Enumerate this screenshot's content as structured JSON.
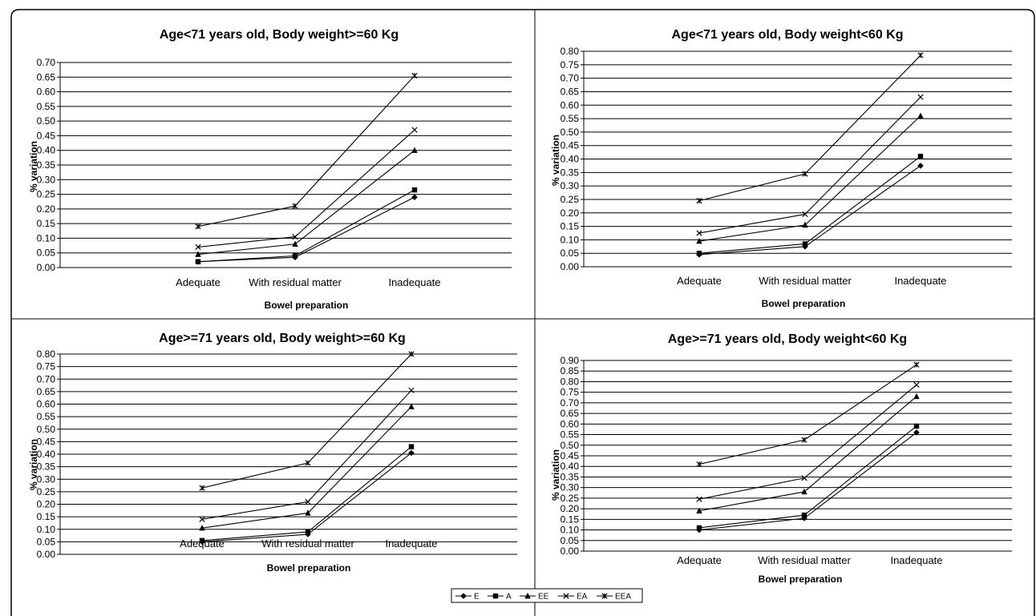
{
  "legend": {
    "items": [
      {
        "name": "E",
        "marker": "diamond"
      },
      {
        "name": "A",
        "marker": "square"
      },
      {
        "name": "EE",
        "marker": "triangle"
      },
      {
        "name": "EA",
        "marker": "x"
      },
      {
        "name": "EEA",
        "marker": "star"
      }
    ]
  },
  "chart_data": [
    {
      "type": "line",
      "title": "Age<71 years old, Body weight>=60 Kg",
      "xlabel": "Bowel preparation",
      "ylabel": "% variation",
      "categories": [
        "Adequate",
        "With residual matter",
        "Inadequate"
      ],
      "ylim": [
        0,
        0.7
      ],
      "ystep": 0.05,
      "grid": true,
      "series": [
        {
          "name": "E",
          "values": [
            0.02,
            0.035,
            0.24
          ]
        },
        {
          "name": "A",
          "values": [
            0.02,
            0.04,
            0.265
          ]
        },
        {
          "name": "EE",
          "values": [
            0.045,
            0.08,
            0.4
          ]
        },
        {
          "name": "EA",
          "values": [
            0.07,
            0.105,
            0.47
          ]
        },
        {
          "name": "EEA",
          "values": [
            0.14,
            0.21,
            0.655
          ]
        }
      ]
    },
    {
      "type": "line",
      "title": "Age<71 years old, Body weight<60 Kg",
      "xlabel": "Bowel preparation",
      "ylabel": "% variation",
      "categories": [
        "Adequate",
        "With residual matter",
        "Inadequate"
      ],
      "ylim": [
        0,
        0.8
      ],
      "ystep": 0.05,
      "grid": true,
      "series": [
        {
          "name": "E",
          "values": [
            0.045,
            0.075,
            0.375
          ]
        },
        {
          "name": "A",
          "values": [
            0.05,
            0.085,
            0.41
          ]
        },
        {
          "name": "EE",
          "values": [
            0.095,
            0.155,
            0.56
          ]
        },
        {
          "name": "EA",
          "values": [
            0.125,
            0.195,
            0.63
          ]
        },
        {
          "name": "EEA",
          "values": [
            0.245,
            0.345,
            0.785
          ]
        }
      ]
    },
    {
      "type": "line",
      "title": "Age>=71 years old, Body weight>=60 Kg",
      "xlabel": "Bowel preparation",
      "ylabel": "% variation",
      "categories": [
        "Adequate",
        "With residual matter",
        "Inadequate"
      ],
      "ylim": [
        0,
        0.8
      ],
      "ystep": 0.05,
      "grid": true,
      "series": [
        {
          "name": "E",
          "values": [
            0.05,
            0.08,
            0.405
          ]
        },
        {
          "name": "A",
          "values": [
            0.055,
            0.09,
            0.43
          ]
        },
        {
          "name": "EE",
          "values": [
            0.105,
            0.165,
            0.59
          ]
        },
        {
          "name": "EA",
          "values": [
            0.14,
            0.21,
            0.655
          ]
        },
        {
          "name": "EEA",
          "values": [
            0.265,
            0.365,
            0.8
          ]
        }
      ]
    },
    {
      "type": "line",
      "title": "Age>=71 years old, Body weight<60 Kg",
      "xlabel": "Bowel preparation",
      "ylabel": "% variation",
      "categories": [
        "Adequate",
        "With residual matter",
        "Inadequate"
      ],
      "ylim": [
        0,
        0.9
      ],
      "ystep": 0.05,
      "grid": true,
      "series": [
        {
          "name": "E",
          "values": [
            0.1,
            0.155,
            0.56
          ]
        },
        {
          "name": "A",
          "values": [
            0.11,
            0.17,
            0.59
          ]
        },
        {
          "name": "EE",
          "values": [
            0.19,
            0.28,
            0.73
          ]
        },
        {
          "name": "EA",
          "values": [
            0.245,
            0.345,
            0.785
          ]
        },
        {
          "name": "EEA",
          "values": [
            0.41,
            0.525,
            0.88
          ]
        }
      ]
    }
  ]
}
